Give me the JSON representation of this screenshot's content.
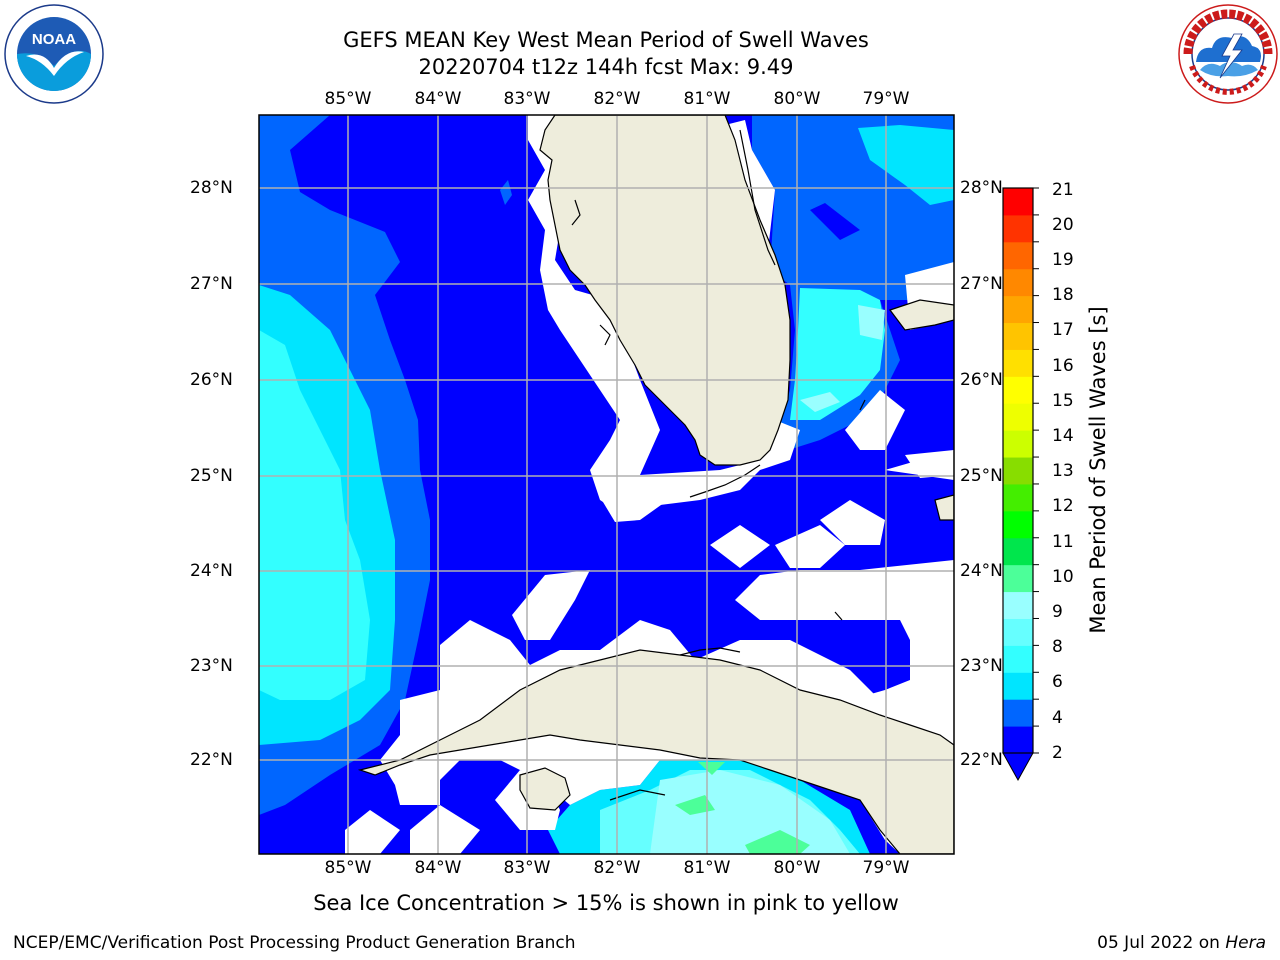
{
  "title_line1": "GEFS MEAN Key West Mean Period of Swell Waves",
  "title_line2": "20220704 t12z 144h fcst   Max: 9.49",
  "lon_labels": [
    "85°W",
    "84°W",
    "83°W",
    "82°W",
    "81°W",
    "80°W",
    "79°W"
  ],
  "lat_labels": [
    "28°N",
    "27°N",
    "26°N",
    "25°N",
    "24°N",
    "23°N",
    "22°N"
  ],
  "colorbar": {
    "label": "Mean Period of Swell Waves [s]",
    "ticks": [
      "21",
      "20",
      "19",
      "18",
      "17",
      "16",
      "15",
      "14",
      "13",
      "12",
      "11",
      "10",
      "9",
      "8",
      "6",
      "4",
      "2"
    ],
    "colors": [
      "#0000ff",
      "#0066ff",
      "#00e5ff",
      "#33ffff",
      "#66ffff",
      "#99ffff",
      "#4cff99",
      "#00e64c",
      "#00ff00",
      "#44ee00",
      "#88dd00",
      "#ccff00",
      "#eeff00",
      "#ffff00",
      "#ffe000",
      "#ffc400",
      "#ffa500",
      "#ff8800",
      "#ff6600",
      "#ff3300",
      "#ff0000"
    ]
  },
  "footnote": "Sea Ice Concentration > 15% is shown in pink to yellow",
  "footer_left": "NCEP/EMC/Verification Post Processing Product Generation Branch",
  "footer_date": "05 Jul 2022 on",
  "footer_host": "Hera",
  "logos": {
    "left": "noaa-logo",
    "right": "nws-logo"
  }
}
